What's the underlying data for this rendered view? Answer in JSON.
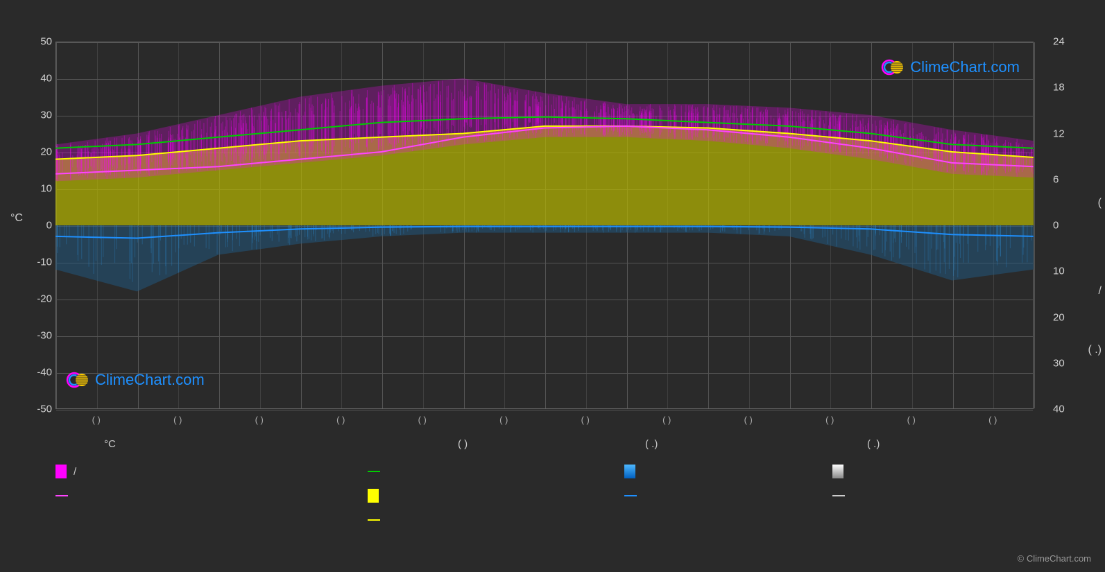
{
  "chart": {
    "type": "climate-chart",
    "background_color": "#2a2a2a",
    "plot_background": "#2a2a2a",
    "grid_color": "#555555",
    "border_color": "#666666",
    "text_color": "#d0d0d0",
    "y_axis_left": {
      "label": "°C",
      "min": -50,
      "max": 50,
      "ticks": [
        50,
        40,
        30,
        20,
        10,
        0,
        -10,
        -20,
        -30,
        -40,
        -50
      ],
      "label_fontsize": 16,
      "tick_fontsize": 15
    },
    "y_axis_right": {
      "ticks_upper": [
        24,
        18,
        12,
        6,
        0
      ],
      "ticks_lower": [
        10,
        20,
        30,
        40
      ],
      "symbols": [
        "(",
        "/",
        "(  .)"
      ],
      "tick_fontsize": 15
    },
    "x_axis": {
      "months": 12,
      "tick_label": "( )",
      "tick_count": 13
    },
    "series": {
      "temp_max_line": {
        "type": "line",
        "color": "#00cc00",
        "width": 2,
        "values": [
          21,
          22,
          24,
          26,
          28,
          29,
          29.5,
          29,
          28,
          27,
          25,
          22,
          21
        ]
      },
      "temp_avg_line": {
        "type": "line",
        "color": "#ffff00",
        "width": 2,
        "values": [
          18,
          19,
          21,
          23,
          24,
          25,
          27,
          27,
          26.5,
          25,
          23,
          20,
          18.5
        ]
      },
      "temp_min_line": {
        "type": "line",
        "color": "#ff44ff",
        "width": 2,
        "values": [
          14,
          15,
          16,
          18,
          20,
          24,
          26.5,
          27,
          26,
          24,
          21,
          17,
          16
        ]
      },
      "precip_line": {
        "type": "line",
        "color": "#1e90ff",
        "width": 2,
        "values": [
          -3,
          -3.5,
          -2,
          -1,
          -0.5,
          -0.3,
          -0.3,
          -0.3,
          -0.3,
          -0.5,
          -1,
          -2.5,
          -3
        ]
      },
      "temp_max_band": {
        "type": "area",
        "color": "#ff00ff",
        "opacity": 0.55,
        "upper": [
          22,
          25,
          30,
          35,
          38,
          40,
          36,
          33,
          33,
          32,
          30,
          26,
          23
        ],
        "lower": [
          12,
          13,
          15,
          17,
          19,
          22,
          24,
          24,
          23,
          21,
          18,
          14,
          13
        ]
      },
      "sun_band": {
        "type": "area",
        "color": "#b8b800",
        "opacity": 0.7,
        "upper": [
          18,
          19,
          21,
          23,
          24,
          25,
          27,
          27,
          26.5,
          25,
          23,
          20,
          18.5
        ],
        "lower": [
          0,
          0,
          0,
          0,
          0,
          0,
          0,
          0,
          0,
          0,
          0,
          0,
          0
        ]
      },
      "precip_band": {
        "type": "area",
        "color": "#1e5f8f",
        "opacity": 0.45,
        "upper": [
          0,
          0,
          0,
          0,
          0,
          0,
          0,
          0,
          0,
          0,
          0,
          0,
          0
        ],
        "lower": [
          -12,
          -18,
          -8,
          -5,
          -3,
          -2,
          -2,
          -2,
          -2,
          -3,
          -8,
          -15,
          -12
        ]
      }
    },
    "legend": {
      "header_items": [
        "°C",
        "(          )",
        "(  .)",
        "(  .)"
      ],
      "row2": [
        {
          "swatch_type": "box",
          "color": "#ff00ff",
          "label": "/"
        },
        {
          "swatch_type": "line",
          "color": "#00cc00",
          "label": ""
        },
        {
          "swatch_type": "box",
          "color": "#1e90ff",
          "label": ""
        },
        {
          "swatch_type": "box",
          "color": "#cccccc",
          "label": ""
        }
      ],
      "row3": [
        {
          "swatch_type": "line",
          "color": "#ff44ff",
          "label": ""
        },
        {
          "swatch_type": "box",
          "color": "#ffff00",
          "label": ""
        },
        {
          "swatch_type": "line",
          "color": "#1e90ff",
          "label": ""
        },
        {
          "swatch_type": "line",
          "color": "#cccccc",
          "label": ""
        }
      ],
      "row4": [
        {
          "swatch_type": "line",
          "color": "#ffff00",
          "label": ""
        }
      ]
    },
    "watermark": {
      "text": "ClimeChart.com",
      "color": "#1e90ff",
      "logo_colors": {
        "ring": "#ff00ff",
        "ring2": "#1e90ff",
        "sphere": "#ffcc00"
      }
    },
    "copyright": "© ClimeChart.com"
  }
}
